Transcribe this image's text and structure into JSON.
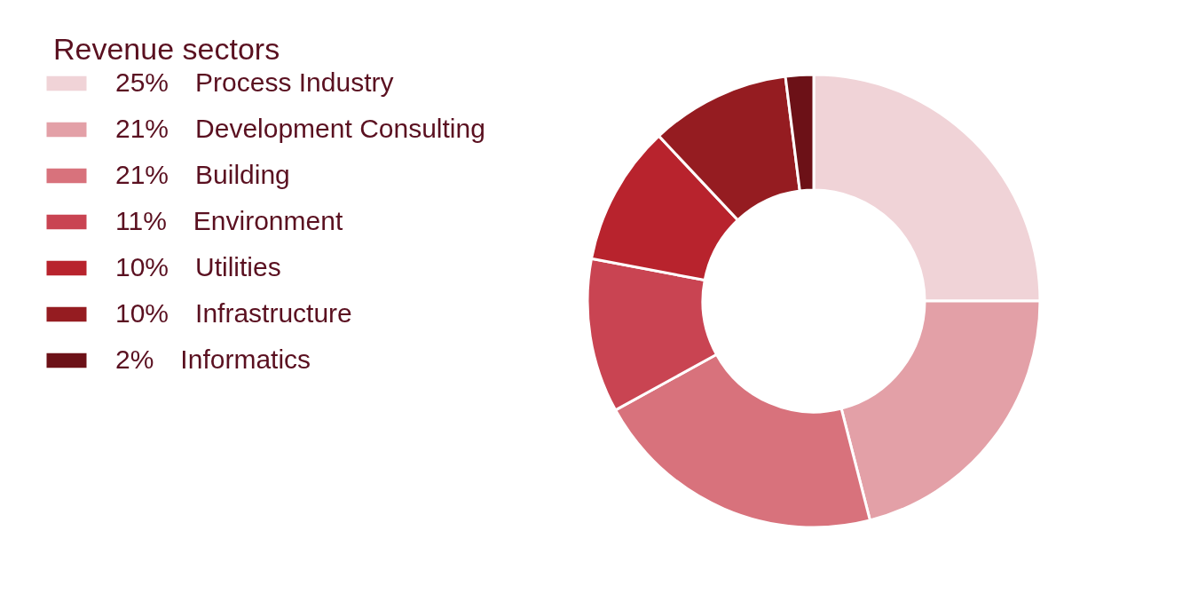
{
  "chart_data": {
    "type": "donut",
    "title": "Revenue sectors",
    "categories": [
      "Process Industry",
      "Development Consulting",
      "Building",
      "Environment",
      "Utilities",
      "Infrastructure",
      "Informatics"
    ],
    "values": [
      25,
      21,
      21,
      11,
      10,
      10,
      2
    ],
    "value_labels": [
      "25%",
      "21%",
      "21%",
      "11%",
      "10%",
      "10%",
      "2%"
    ],
    "colors": [
      "#f0d3d7",
      "#e3a0a7",
      "#d8727c",
      "#c94452",
      "#b8232d",
      "#951c21",
      "#6c1117"
    ],
    "legend": "left"
  }
}
